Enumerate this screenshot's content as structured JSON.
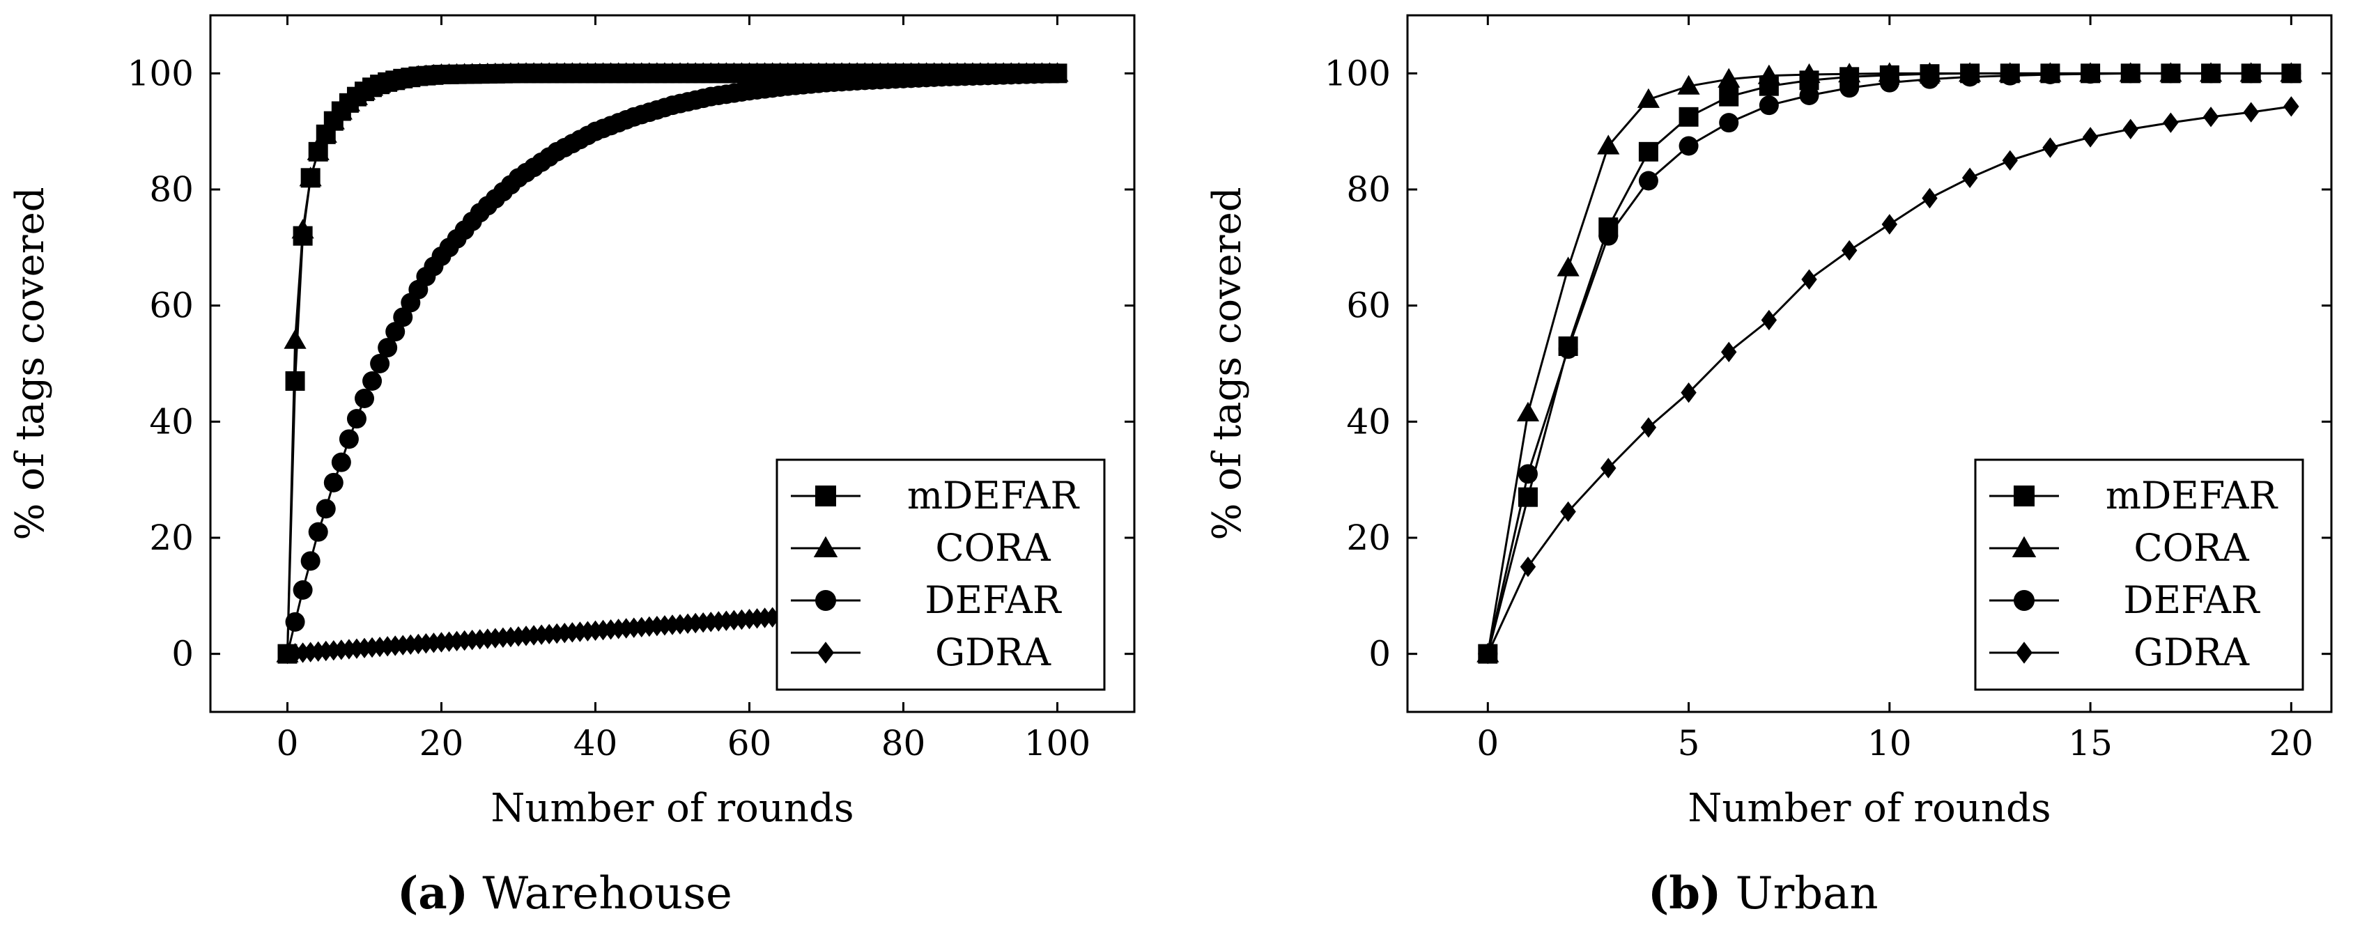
{
  "captions": {
    "a_tag": "(a)",
    "a_text": "Warehouse",
    "b_tag": "(b)",
    "b_text": "Urban"
  },
  "chart_data": [
    {
      "type": "line",
      "subtitle": "Warehouse",
      "xlabel": "Number of rounds",
      "ylabel": "% of tags covered",
      "xlim": [
        -10,
        110
      ],
      "ylim": [
        -10,
        110
      ],
      "xticks": [
        0,
        20,
        40,
        60,
        80,
        100
      ],
      "yticks": [
        0,
        20,
        40,
        60,
        80,
        100
      ],
      "grid": false,
      "legend_position": "bottom-right",
      "x_max_round": 100,
      "series": [
        {
          "name": "mDEFAR",
          "marker": "square",
          "x": [
            0,
            1,
            2,
            3,
            4,
            5,
            6,
            7,
            8,
            9,
            10,
            11,
            12,
            13,
            14,
            15,
            16,
            17,
            18,
            19,
            20,
            25,
            30,
            40,
            50,
            60,
            70,
            80,
            90,
            100
          ],
          "y": [
            0,
            47,
            72,
            82,
            86.5,
            89.5,
            91.8,
            93.5,
            94.9,
            96,
            96.9,
            97.6,
            98.1,
            98.5,
            98.8,
            99.1,
            99.3,
            99.5,
            99.6,
            99.7,
            99.8,
            99.9,
            100,
            100,
            100,
            100,
            100,
            100,
            100,
            100
          ]
        },
        {
          "name": "CORA",
          "marker": "triangle",
          "x": [
            0,
            1,
            2,
            3,
            4,
            5,
            6,
            7,
            8,
            9,
            10,
            11,
            12,
            13,
            14,
            15,
            16,
            17,
            18,
            19,
            20,
            25,
            30,
            40,
            50,
            60,
            70,
            80,
            90,
            100
          ],
          "y": [
            0,
            54,
            73,
            82,
            86.5,
            89.5,
            91.8,
            93.5,
            94.9,
            96,
            96.9,
            97.6,
            98.1,
            98.5,
            98.8,
            99.1,
            99.3,
            99.5,
            99.6,
            99.7,
            99.8,
            99.9,
            100,
            100,
            100,
            100,
            100,
            100,
            100,
            100
          ]
        },
        {
          "name": "DEFAR",
          "marker": "circle",
          "x": [
            0,
            1,
            2,
            3,
            4,
            5,
            6,
            7,
            8,
            9,
            10,
            12,
            14,
            16,
            18,
            20,
            25,
            30,
            35,
            40,
            45,
            50,
            55,
            60,
            65,
            70,
            75,
            80,
            85,
            90,
            95,
            100
          ],
          "y": [
            0,
            5.5,
            11,
            16,
            21,
            25,
            29.5,
            33,
            37,
            40.5,
            44,
            50,
            55.5,
            60.5,
            65,
            68.5,
            76,
            82,
            86.5,
            90,
            92.5,
            94.5,
            96,
            97,
            97.8,
            98.4,
            98.8,
            99.1,
            99.4,
            99.6,
            99.8,
            100
          ]
        },
        {
          "name": "GDRA",
          "marker": "diamond",
          "x": [
            0,
            10,
            20,
            30,
            40,
            50,
            60,
            66
          ],
          "y": [
            0,
            1,
            2,
            3,
            4,
            5,
            6,
            6.6
          ]
        }
      ]
    },
    {
      "type": "line",
      "subtitle": "Urban",
      "xlabel": "Number of rounds",
      "ylabel": "% of tags covered",
      "xlim": [
        -2,
        21
      ],
      "ylim": [
        -10,
        110
      ],
      "xticks": [
        0,
        5,
        10,
        15,
        20
      ],
      "yticks": [
        0,
        20,
        40,
        60,
        80,
        100
      ],
      "grid": false,
      "legend_position": "bottom-right",
      "series": [
        {
          "name": "mDEFAR",
          "marker": "square",
          "x": [
            0,
            1,
            2,
            3,
            4,
            5,
            6,
            7,
            8,
            9,
            10,
            11,
            12,
            13,
            14,
            15,
            16,
            17,
            18,
            19,
            20
          ],
          "y": [
            0,
            27,
            53,
            73.5,
            86.5,
            92.5,
            96,
            97.8,
            98.8,
            99.4,
            99.7,
            99.9,
            100,
            100,
            100,
            100,
            100,
            100,
            100,
            100,
            100
          ]
        },
        {
          "name": "CORA",
          "marker": "triangle",
          "x": [
            0,
            1,
            2,
            3,
            4,
            5,
            6,
            7,
            8,
            9,
            10,
            11,
            12,
            13,
            14,
            15,
            16,
            17,
            18,
            19,
            20
          ],
          "y": [
            0,
            41.5,
            66.5,
            87.5,
            95.5,
            97.8,
            99,
            99.6,
            99.8,
            99.9,
            100,
            100,
            100,
            100,
            100,
            100,
            100,
            100,
            100,
            100,
            100
          ]
        },
        {
          "name": "DEFAR",
          "marker": "circle",
          "x": [
            0,
            1,
            2,
            3,
            4,
            5,
            6,
            7,
            8,
            9,
            10,
            11,
            12,
            13,
            14,
            15,
            16,
            17,
            18,
            19,
            20
          ],
          "y": [
            0,
            31,
            52.5,
            72,
            81.5,
            87.5,
            91.5,
            94.5,
            96.2,
            97.5,
            98.4,
            99,
            99.4,
            99.6,
            99.8,
            99.9,
            100,
            100,
            100,
            100,
            100
          ]
        },
        {
          "name": "GDRA",
          "marker": "diamond",
          "x": [
            0,
            1,
            2,
            3,
            4,
            5,
            6,
            7,
            8,
            9,
            10,
            11,
            12,
            13,
            14,
            15,
            16,
            17,
            18,
            19,
            20
          ],
          "y": [
            0,
            15,
            24.5,
            32,
            39,
            45,
            52,
            57.5,
            64.5,
            69.5,
            74,
            78.5,
            82,
            85,
            87.2,
            89,
            90.4,
            91.5,
            92.5,
            93.3,
            94.3
          ]
        }
      ]
    }
  ]
}
